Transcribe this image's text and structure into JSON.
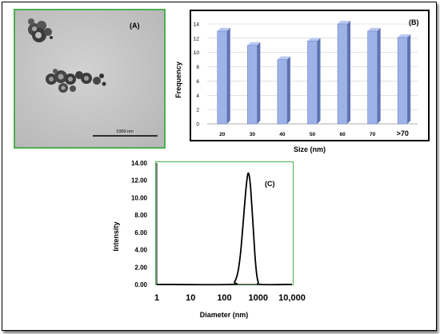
{
  "panels": {
    "a": {
      "label": "(A)",
      "scale_bar_label": "1000 nm"
    },
    "b": {
      "label": "(B)"
    },
    "c": {
      "label": "(C)"
    }
  },
  "chart_data": [
    {
      "type": "bar",
      "panel": "(B)",
      "categories": [
        "20",
        "30",
        "40",
        "50",
        "60",
        "70",
        ">70"
      ],
      "values": [
        13,
        11,
        9,
        11.6,
        14,
        13,
        12.1
      ],
      "xlabel": "Size (nm)",
      "ylabel": "Frequency",
      "ylim": [
        0,
        14
      ],
      "yticks": [
        "0",
        "2",
        "4",
        "6",
        "8",
        "10",
        "12",
        "14"
      ],
      "bar_color": "#9db3e8",
      "grid": true
    },
    {
      "type": "line",
      "panel": "(C)",
      "x": [
        150,
        200,
        250,
        300,
        350,
        400,
        450,
        500,
        550,
        600,
        700,
        800,
        900,
        1000,
        1200
      ],
      "y": [
        0,
        0.3,
        1.4,
        3.6,
        6.6,
        9.4,
        11.6,
        12.8,
        12.4,
        11.0,
        7.0,
        3.4,
        1.2,
        0.3,
        0
      ],
      "xlabel": "Diameter (nm)",
      "ylabel": "Intensity",
      "xscale": "log",
      "xlim": [
        1,
        10000
      ],
      "xticks": [
        "1",
        "10",
        "100",
        "1000",
        "10,000"
      ],
      "ylim": [
        0,
        14
      ],
      "yticks": [
        "0.00",
        "2.00",
        "4.00",
        "6.00",
        "8.00",
        "10.00",
        "12.00",
        "14.00"
      ],
      "line_color": "#000000",
      "grid": false
    }
  ]
}
